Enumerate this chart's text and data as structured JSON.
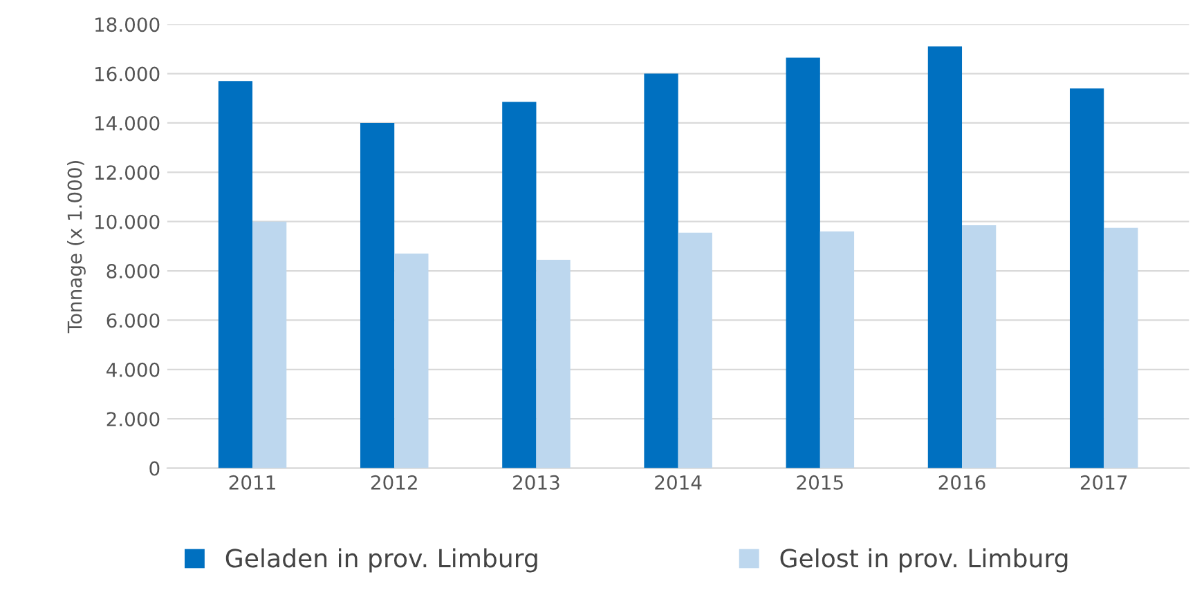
{
  "chart_data": {
    "type": "bar",
    "ylabel": "Tonnage (x 1.000)",
    "categories": [
      "2011",
      "2012",
      "2013",
      "2014",
      "2015",
      "2016",
      "2017"
    ],
    "series": [
      {
        "name": "Geladen in prov. Limburg",
        "color": "#0070c0",
        "values": [
          15700,
          14000,
          14850,
          16000,
          16650,
          17100,
          15400
        ]
      },
      {
        "name": "Gelost in prov. Limburg",
        "color": "#bdd7ee",
        "values": [
          10000,
          8700,
          8450,
          9550,
          9600,
          9850,
          9750
        ]
      }
    ],
    "ylim": [
      0,
      18000
    ],
    "yticks": [
      {
        "value": 0,
        "label": "0"
      },
      {
        "value": 2000,
        "label": "2.000"
      },
      {
        "value": 4000,
        "label": "4.000"
      },
      {
        "value": 6000,
        "label": "6.000"
      },
      {
        "value": 8000,
        "label": "8.000"
      },
      {
        "value": 10000,
        "label": "10.000"
      },
      {
        "value": 12000,
        "label": "12.000"
      },
      {
        "value": 14000,
        "label": "14.000"
      },
      {
        "value": 16000,
        "label": "16.000"
      },
      {
        "value": 18000,
        "label": "18.000"
      }
    ],
    "grid": "y",
    "legend": "bottom"
  }
}
